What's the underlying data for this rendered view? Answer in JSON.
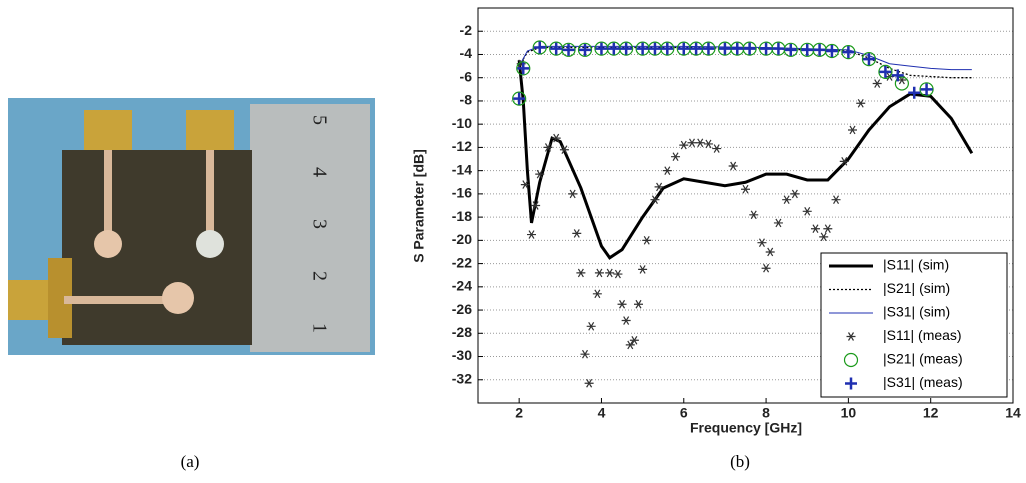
{
  "photo": {
    "ruler_labels": [
      "5",
      "4",
      "3",
      "2",
      "1"
    ]
  },
  "captions": [
    "(a)",
    "(b)"
  ],
  "chart_data": {
    "type": "line",
    "x_label": "Frequency [GHz]",
    "y_label": "S Parameter [dB]",
    "xlim": [
      1,
      14
    ],
    "ylim": [
      -34,
      0
    ],
    "xticks": [
      2,
      4,
      6,
      8,
      10,
      12,
      14
    ],
    "yticks": [
      -32,
      -30,
      -28,
      -26,
      -24,
      -22,
      -20,
      -18,
      -16,
      -14,
      -12,
      -10,
      -8,
      -6,
      -4,
      -2
    ],
    "grid": true,
    "legend": "lower right",
    "series": [
      {
        "name": "|S11| (sim)",
        "color": "#000000",
        "style": "solid",
        "x": [
          2,
          2.1,
          2.2,
          2.3,
          2.5,
          2.8,
          3.0,
          3.5,
          4.0,
          4.2,
          4.5,
          5.0,
          5.5,
          6.0,
          6.5,
          7.0,
          7.5,
          8.0,
          8.5,
          9.0,
          9.5,
          10.0,
          10.5,
          11.0,
          11.5,
          12.0,
          12.5,
          13.0
        ],
        "values": [
          -4.5,
          -8,
          -14,
          -18.5,
          -15,
          -11.2,
          -11.5,
          -15.5,
          -20.5,
          -21.5,
          -20.8,
          -18,
          -15.5,
          -14.7,
          -15,
          -15.3,
          -15,
          -14.3,
          -14.3,
          -14.8,
          -14.8,
          -13,
          -10.5,
          -8.5,
          -7.4,
          -7.6,
          -9.5,
          -12.5
        ]
      },
      {
        "name": "|S21| (sim)",
        "color": "#000000",
        "style": "dotted",
        "x": [
          2,
          2.2,
          2.5,
          4,
          6,
          8,
          10,
          10.5,
          11,
          11.5,
          12,
          12.5,
          13
        ],
        "values": [
          -5,
          -3.8,
          -3.4,
          -3.4,
          -3.4,
          -3.5,
          -3.7,
          -4.3,
          -5.2,
          -5.8,
          -5.9,
          -6.0,
          -6.0
        ]
      },
      {
        "name": "|S31| (sim)",
        "color": "#1f2fb0",
        "style": "thin",
        "x": [
          2,
          2.2,
          2.5,
          4,
          6,
          8,
          10,
          10.5,
          11,
          11.5,
          12,
          12.5,
          13
        ],
        "values": [
          -5,
          -3.7,
          -3.3,
          -3.3,
          -3.3,
          -3.4,
          -3.6,
          -4.1,
          -4.8,
          -5.0,
          -5.2,
          -5.3,
          -5.3
        ]
      },
      {
        "name": "|S11| (meas)",
        "color": "#333333",
        "marker": "star",
        "x": [
          2.05,
          2.15,
          2.3,
          2.4,
          2.5,
          2.7,
          2.9,
          3.1,
          3.3,
          3.4,
          3.5,
          3.6,
          3.7,
          3.75,
          3.9,
          3.95,
          4.2,
          4.4,
          4.5,
          4.6,
          4.7,
          4.8,
          4.9,
          5.0,
          5.1,
          5.3,
          5.4,
          5.6,
          5.8,
          6.0,
          6.2,
          6.4,
          6.6,
          6.8,
          7.2,
          7.5,
          7.7,
          7.9,
          8.0,
          8.1,
          8.3,
          8.5,
          8.7,
          9.0,
          9.2,
          9.4,
          9.5,
          9.7,
          9.9,
          10.1,
          10.3,
          10.7,
          11.0,
          11.3
        ],
        "values": [
          -4.8,
          -15.2,
          -19.5,
          -17,
          -14.3,
          -12,
          -11.2,
          -12.2,
          -16,
          -19.4,
          -22.8,
          -29.8,
          -32.3,
          -27.4,
          -24.6,
          -22.8,
          -22.8,
          -22.9,
          -25.5,
          -26.9,
          -29,
          -28.6,
          -25.5,
          -22.5,
          -20,
          -16.5,
          -15.4,
          -14,
          -12.8,
          -11.8,
          -11.6,
          -11.6,
          -11.7,
          -12.1,
          -13.6,
          -15.6,
          -17.8,
          -20.2,
          -22.4,
          -21,
          -18.5,
          -16.5,
          -16,
          -17.5,
          -19,
          -19.7,
          -19,
          -16.5,
          -13.2,
          -10.5,
          -8.2,
          -6.5,
          -5.9,
          -6.2
        ]
      },
      {
        "name": "|S21| (meas)",
        "color": "#1a9a1a",
        "marker": "circle",
        "x": [
          2.0,
          2.1,
          2.5,
          2.9,
          3.2,
          3.6,
          4.0,
          4.3,
          4.6,
          5.0,
          5.3,
          5.6,
          6.0,
          6.3,
          6.6,
          7.0,
          7.3,
          7.6,
          8.0,
          8.3,
          8.6,
          9.0,
          9.3,
          9.6,
          10.0,
          10.5,
          10.9,
          11.3,
          11.9
        ],
        "values": [
          -7.8,
          -5.2,
          -3.4,
          -3.5,
          -3.6,
          -3.6,
          -3.5,
          -3.5,
          -3.5,
          -3.5,
          -3.5,
          -3.5,
          -3.5,
          -3.5,
          -3.5,
          -3.5,
          -3.5,
          -3.5,
          -3.5,
          -3.5,
          -3.6,
          -3.6,
          -3.6,
          -3.7,
          -3.8,
          -4.4,
          -5.5,
          -6.5,
          -7.0
        ]
      },
      {
        "name": "|S31| (meas)",
        "color": "#1f2fb0",
        "marker": "plus",
        "x": [
          2.0,
          2.1,
          2.5,
          2.9,
          3.2,
          3.6,
          4.0,
          4.3,
          4.6,
          5.0,
          5.3,
          5.6,
          6.0,
          6.3,
          6.6,
          7.0,
          7.3,
          7.6,
          8.0,
          8.3,
          8.6,
          9.0,
          9.3,
          9.6,
          10.0,
          10.5,
          10.9,
          11.2,
          11.6,
          11.9
        ],
        "values": [
          -7.8,
          -5.2,
          -3.4,
          -3.5,
          -3.6,
          -3.6,
          -3.5,
          -3.5,
          -3.5,
          -3.5,
          -3.5,
          -3.5,
          -3.5,
          -3.5,
          -3.5,
          -3.5,
          -3.5,
          -3.5,
          -3.5,
          -3.5,
          -3.6,
          -3.6,
          -3.6,
          -3.7,
          -3.8,
          -4.4,
          -5.5,
          -5.8,
          -7.3,
          -7.0
        ]
      }
    ]
  }
}
